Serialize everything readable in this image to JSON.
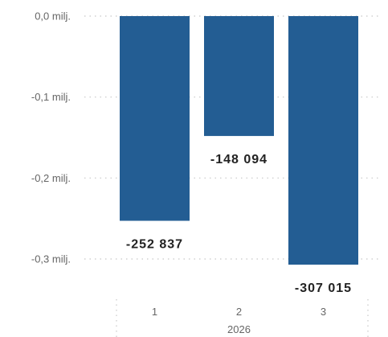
{
  "chart_data": {
    "type": "bar",
    "categories": [
      "1",
      "2",
      "3"
    ],
    "values": [
      -252837,
      -148094,
      -307015
    ],
    "data_labels": [
      "-252 837",
      "-148 094",
      "-307 015"
    ],
    "group_label": "2026",
    "ylim": [
      -0.3,
      0.0
    ],
    "y_ticks": [
      {
        "value": 0.0,
        "label": "0,0 milj."
      },
      {
        "value": -0.1,
        "label": "-0,1 milj."
      },
      {
        "value": -0.2,
        "label": "-0,2 milj."
      },
      {
        "value": -0.3,
        "label": "-0,3 milj."
      }
    ],
    "y_unit_scale": 1000000,
    "grid": true,
    "bar_color": "#235d93",
    "title": "",
    "xlabel": "",
    "ylabel": ""
  }
}
